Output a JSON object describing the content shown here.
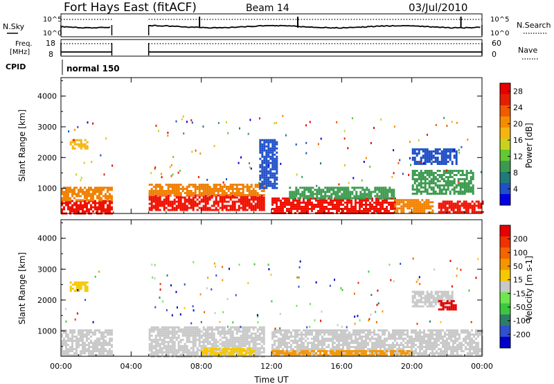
{
  "header": {
    "station": "Fort Hays East (fitACF)",
    "beam": "Beam 14",
    "date": "03/Jul/2010"
  },
  "status_panels": {
    "nsky_label": "N.Sky",
    "nsearch_label": "N.Search",
    "noise_ticks": [
      "10^5",
      "10^0"
    ],
    "freq_label_line1": "Freq.",
    "freq_label_line2": "[MHz]",
    "freq_ticks": [
      "18",
      "8"
    ],
    "nave_label": "Nave",
    "nave_ticks": [
      "60",
      "0"
    ],
    "cpid_label": "CPID",
    "cpid_value": "normal 150"
  },
  "chart_data": [
    {
      "type": "heatmap",
      "name": "power",
      "ylabel": "Slant Range [km]",
      "xlabel": "",
      "yticks": [
        "1000",
        "2000",
        "3000",
        "4000"
      ],
      "ylim": [
        180,
        4600
      ],
      "xlim": [
        0,
        24
      ],
      "x_tick_labels": [
        "00:00",
        "04:00",
        "08:00",
        "12:00",
        "16:00",
        "20:00",
        "00:00"
      ],
      "colorbar": {
        "label": "Power [dB]",
        "ticks": [
          "4",
          "8",
          "12",
          "16",
          "20",
          "24",
          "28"
        ],
        "colors": [
          "#0000e6",
          "#2050c8",
          "#1f7a7a",
          "#3c9a50",
          "#64c832",
          "#c8d21e",
          "#f5b40f",
          "#f58c00",
          "#f05a00",
          "#e61e00",
          "#e60000"
        ]
      },
      "no_data_gaps_ut": [
        [
          2.9,
          5.0
        ]
      ],
      "regions": [
        {
          "t0": 0.0,
          "t1": 2.9,
          "r0": 180,
          "r1": 620,
          "color": "#f01000"
        },
        {
          "t0": 0.0,
          "t1": 2.9,
          "r0": 620,
          "r1": 1050,
          "color": "#f08000"
        },
        {
          "t0": 5.0,
          "t1": 11.6,
          "r0": 300,
          "r1": 800,
          "color": "#f01000"
        },
        {
          "t0": 5.0,
          "t1": 11.6,
          "r0": 800,
          "r1": 1150,
          "color": "#f08000"
        },
        {
          "t0": 12.0,
          "t1": 19.0,
          "r0": 220,
          "r1": 700,
          "color": "#f01000"
        },
        {
          "t0": 13.0,
          "t1": 19.0,
          "r0": 700,
          "r1": 1050,
          "color": "#3c9a50"
        },
        {
          "t0": 19.0,
          "t1": 21.2,
          "r0": 220,
          "r1": 650,
          "color": "#f08000"
        },
        {
          "t0": 21.5,
          "t1": 24.0,
          "r0": 220,
          "r1": 600,
          "color": "#f01000"
        },
        {
          "t0": 20.0,
          "t1": 23.5,
          "r0": 800,
          "r1": 1600,
          "color": "#3c9a50"
        },
        {
          "t0": 20.0,
          "t1": 22.5,
          "r0": 1800,
          "r1": 2300,
          "color": "#2050c8"
        },
        {
          "t0": 0.5,
          "t1": 1.5,
          "r0": 2300,
          "r1": 2600,
          "color": "#f5b40f"
        },
        {
          "t0": 11.3,
          "t1": 12.3,
          "r0": 1000,
          "r1": 2600,
          "color": "#2050c8"
        }
      ]
    },
    {
      "type": "heatmap",
      "name": "velocity",
      "ylabel": "Slant Range [km]",
      "xlabel": "Time UT",
      "yticks": [
        "1000",
        "2000",
        "3000",
        "4000"
      ],
      "ylim": [
        180,
        4600
      ],
      "xlim": [
        0,
        24
      ],
      "x_tick_labels": [
        "00:00",
        "04:00",
        "08:00",
        "12:00",
        "16:00",
        "20:00",
        "00:00"
      ],
      "colorbar": {
        "label": "Velocity [m s-1]",
        "ticks": [
          "200",
          "100",
          "50",
          "15",
          "-15",
          "-50",
          "-100",
          "-200"
        ],
        "colors": [
          "#0000c8",
          "#3050d0",
          "#2e7d6b",
          "#3cc83c",
          "#6ee650",
          "#c8c8c8",
          "#f5c800",
          "#f59600",
          "#f56400",
          "#f03200",
          "#e60000"
        ]
      },
      "no_data_gaps_ut": [
        [
          2.9,
          5.0
        ]
      ],
      "regions": [
        {
          "t0": 0.0,
          "t1": 2.9,
          "r0": 180,
          "r1": 1050,
          "color": "#c8c8c8"
        },
        {
          "t0": 5.0,
          "t1": 11.6,
          "r0": 200,
          "r1": 1150,
          "color": "#c8c8c8"
        },
        {
          "t0": 12.0,
          "t1": 24.0,
          "r0": 200,
          "r1": 1050,
          "color": "#c8c8c8"
        },
        {
          "t0": 8.0,
          "t1": 11.0,
          "r0": 200,
          "r1": 450,
          "color": "#f5c800"
        },
        {
          "t0": 12.0,
          "t1": 20.0,
          "r0": 200,
          "r1": 380,
          "color": "#f59600"
        },
        {
          "t0": 20.0,
          "t1": 22.3,
          "r0": 1800,
          "r1": 2300,
          "color": "#c8c8c8"
        },
        {
          "t0": 21.5,
          "t1": 22.5,
          "r0": 1700,
          "r1": 2000,
          "color": "#e60000"
        },
        {
          "t0": 0.5,
          "t1": 1.5,
          "r0": 2300,
          "r1": 2600,
          "color": "#f5c800"
        }
      ]
    }
  ]
}
